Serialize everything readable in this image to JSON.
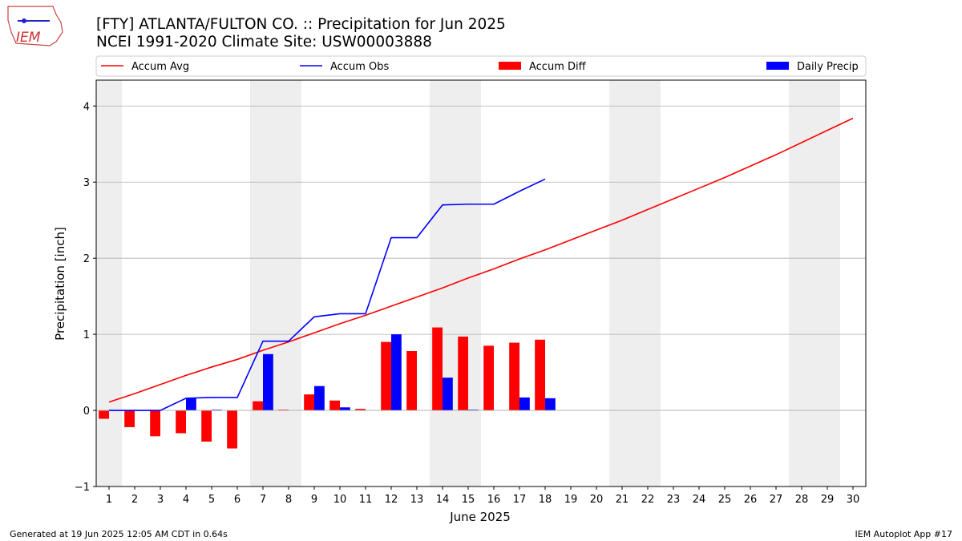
{
  "logo_text": "IEM",
  "chart_data": {
    "type": "bar",
    "title": "[FTY] ATLANTA/FULTON CO. :: Precipitation for Jun 2025",
    "subtitle": "NCEI 1991-2020 Climate Site: USW00003888",
    "x_label": "June 2025",
    "y_label": "Precipitation [inch]",
    "x": [
      1,
      2,
      3,
      4,
      5,
      6,
      7,
      8,
      9,
      10,
      11,
      12,
      13,
      14,
      15,
      16,
      17,
      18,
      19,
      20,
      21,
      22,
      23,
      24,
      25,
      26,
      27,
      28,
      29,
      30
    ],
    "xlim": [
      0.5,
      30.5
    ],
    "xticks": [
      1,
      2,
      3,
      4,
      5,
      6,
      7,
      8,
      9,
      10,
      11,
      12,
      13,
      14,
      15,
      16,
      17,
      18,
      19,
      20,
      21,
      22,
      23,
      24,
      25,
      26,
      27,
      28,
      29,
      30
    ],
    "ylim": [
      -1,
      4.34
    ],
    "yticks": [
      {
        "value": -1,
        "label": "−1"
      },
      0,
      1,
      2,
      3,
      4
    ],
    "grid": true,
    "shaded_ranges": [
      [
        0.5,
        1.5
      ],
      [
        6.5,
        8.5
      ],
      [
        13.5,
        15.5
      ],
      [
        20.5,
        22.5
      ],
      [
        27.5,
        29.5
      ]
    ],
    "shade_color": "#eeeeee",
    "legend": "top",
    "series": [
      {
        "name": "Accum Avg",
        "type": "line",
        "color": "#ff0000",
        "values": [
          0.11,
          0.22,
          0.34,
          0.46,
          0.57,
          0.67,
          0.79,
          0.9,
          1.02,
          1.14,
          1.25,
          1.37,
          1.49,
          1.61,
          1.74,
          1.86,
          1.99,
          2.11,
          2.24,
          2.37,
          2.5,
          2.64,
          2.78,
          2.92,
          3.06,
          3.21,
          3.36,
          3.52,
          3.68,
          3.84
        ]
      },
      {
        "name": "Accum Obs",
        "type": "line",
        "color": "#0000ff",
        "values": [
          0,
          0,
          0,
          0.16,
          0.17,
          0.17,
          0.91,
          0.91,
          1.23,
          1.27,
          1.27,
          2.27,
          2.27,
          2.7,
          2.71,
          2.71,
          2.88,
          3.04,
          null,
          null,
          null,
          null,
          null,
          null,
          null,
          null,
          null,
          null,
          null,
          null
        ]
      },
      {
        "name": "Accum Diff",
        "type": "bar",
        "color": "#ff0000",
        "values": [
          -0.11,
          -0.22,
          -0.34,
          -0.3,
          -0.41,
          -0.5,
          0.12,
          0.01,
          0.21,
          0.13,
          0.02,
          0.9,
          0.78,
          1.09,
          0.97,
          0.85,
          0.89,
          0.93,
          null,
          null,
          null,
          null,
          null,
          null,
          null,
          null,
          null,
          null,
          null,
          null
        ]
      },
      {
        "name": "Daily Precip",
        "type": "bar",
        "color": "#0000ff",
        "values": [
          0,
          0,
          0,
          0.16,
          0.01,
          0,
          0.74,
          0,
          0.32,
          0.04,
          0,
          1.0,
          0,
          0.43,
          0.01,
          0,
          0.17,
          0.16,
          null,
          null,
          null,
          null,
          null,
          null,
          null,
          null,
          null,
          null,
          null,
          null
        ]
      }
    ]
  },
  "footer_left": "Generated at 19 Jun 2025 12:05 AM CDT in 0.64s",
  "footer_right": "IEM Autoplot App #17"
}
